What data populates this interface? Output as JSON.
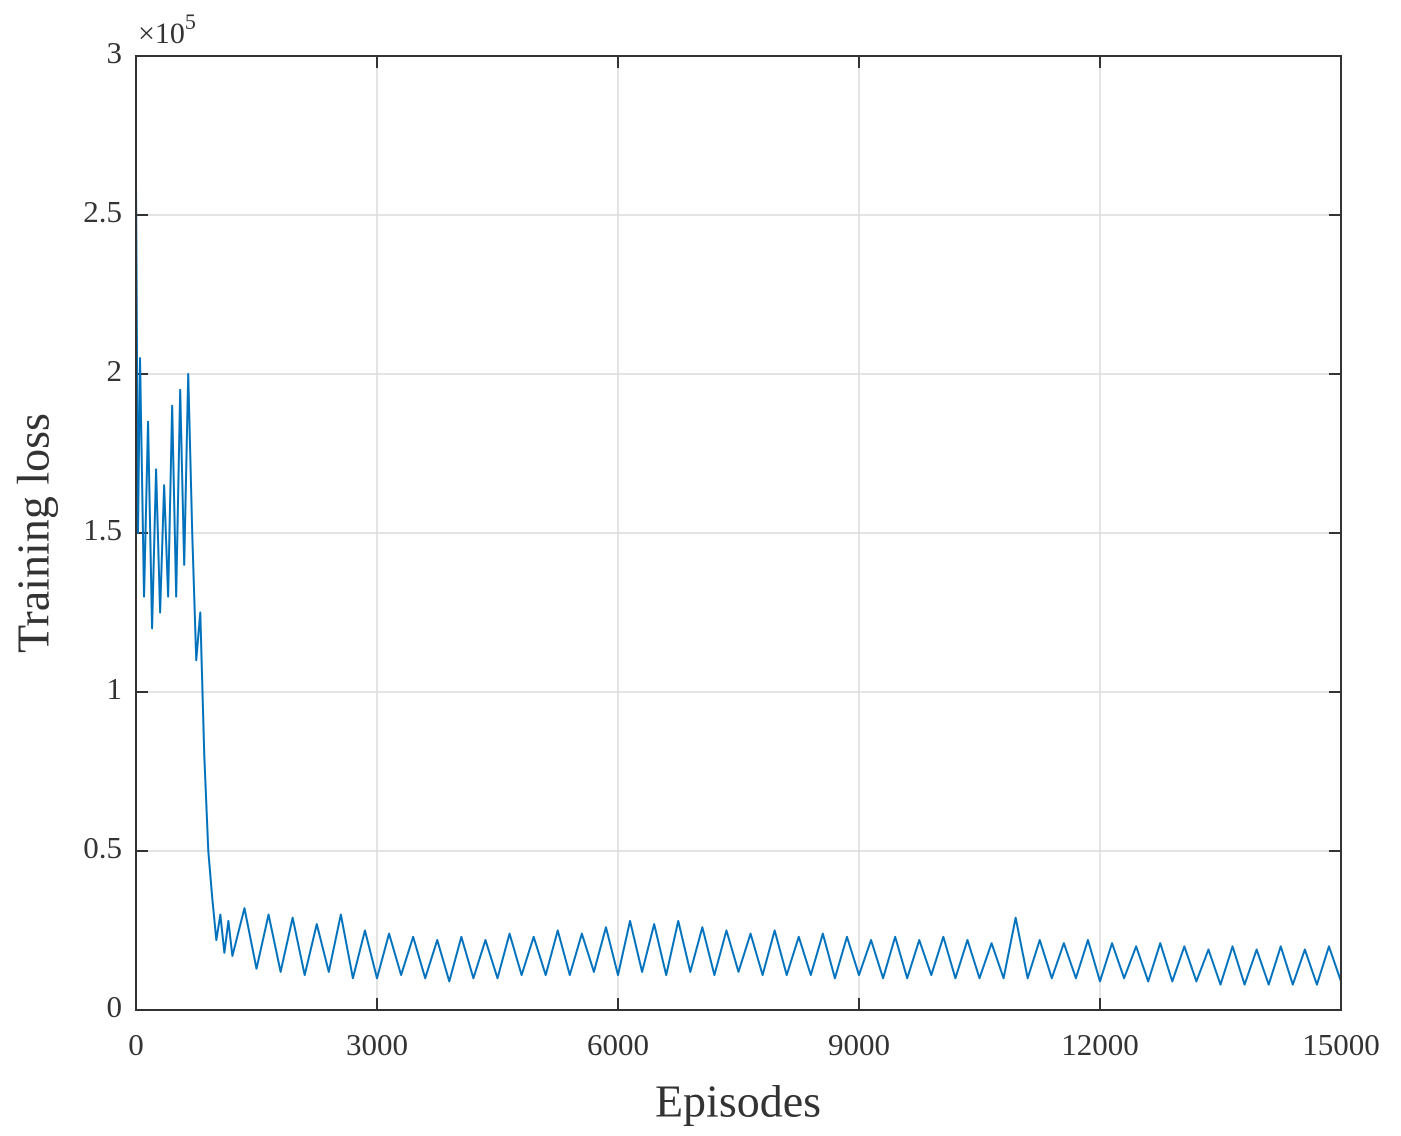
{
  "chart_data": {
    "type": "line",
    "xlabel": "Episodes",
    "ylabel": "Training loss",
    "y_multiplier": "×10",
    "y_exponent": "5",
    "color": "#0072bd",
    "grid": true,
    "xlim": [
      0,
      15000
    ],
    "xticks": [
      0,
      3000,
      6000,
      9000,
      12000,
      15000
    ],
    "ylim": [
      0,
      3
    ],
    "yticks": [
      0,
      0.5,
      1,
      1.5,
      2,
      2.5,
      3
    ],
    "x": [
      0,
      25,
      50,
      100,
      150,
      200,
      250,
      300,
      350,
      400,
      450,
      500,
      550,
      600,
      650,
      700,
      750,
      800,
      850,
      900,
      950,
      1000,
      1050,
      1100,
      1150,
      1200,
      1350,
      1500,
      1650,
      1800,
      1950,
      2100,
      2250,
      2400,
      2550,
      2700,
      2850,
      3000,
      3150,
      3300,
      3450,
      3600,
      3750,
      3900,
      4050,
      4200,
      4350,
      4500,
      4650,
      4800,
      4950,
      5100,
      5250,
      5400,
      5550,
      5700,
      5850,
      6000,
      6150,
      6300,
      6450,
      6600,
      6750,
      6900,
      7050,
      7200,
      7350,
      7500,
      7650,
      7800,
      7950,
      8100,
      8250,
      8400,
      8550,
      8700,
      8850,
      9000,
      9150,
      9300,
      9450,
      9600,
      9750,
      9900,
      10050,
      10200,
      10350,
      10500,
      10650,
      10800,
      10950,
      11100,
      11250,
      11400,
      11550,
      11700,
      11850,
      12000,
      12150,
      12300,
      12450,
      12600,
      12750,
      12900,
      13050,
      13200,
      13350,
      13500,
      13650,
      13800,
      13950,
      14100,
      14250,
      14400,
      14550,
      14700,
      14850,
      15000
    ],
    "values": [
      2.6,
      1.5,
      2.05,
      1.3,
      1.85,
      1.2,
      1.7,
      1.25,
      1.65,
      1.3,
      1.9,
      1.3,
      1.95,
      1.4,
      2.0,
      1.5,
      1.1,
      1.25,
      0.8,
      0.5,
      0.35,
      0.22,
      0.3,
      0.18,
      0.28,
      0.17,
      0.32,
      0.13,
      0.3,
      0.12,
      0.29,
      0.11,
      0.27,
      0.12,
      0.3,
      0.1,
      0.25,
      0.1,
      0.24,
      0.11,
      0.23,
      0.1,
      0.22,
      0.09,
      0.23,
      0.1,
      0.22,
      0.1,
      0.24,
      0.11,
      0.23,
      0.11,
      0.25,
      0.11,
      0.24,
      0.12,
      0.26,
      0.11,
      0.28,
      0.12,
      0.27,
      0.11,
      0.28,
      0.12,
      0.26,
      0.11,
      0.25,
      0.12,
      0.24,
      0.11,
      0.25,
      0.11,
      0.23,
      0.11,
      0.24,
      0.1,
      0.23,
      0.11,
      0.22,
      0.1,
      0.23,
      0.1,
      0.22,
      0.11,
      0.23,
      0.1,
      0.22,
      0.1,
      0.21,
      0.1,
      0.29,
      0.1,
      0.22,
      0.1,
      0.21,
      0.1,
      0.22,
      0.09,
      0.21,
      0.1,
      0.2,
      0.09,
      0.21,
      0.09,
      0.2,
      0.09,
      0.19,
      0.08,
      0.2,
      0.08,
      0.19,
      0.08,
      0.2,
      0.08,
      0.19,
      0.08,
      0.2,
      0.09
    ]
  }
}
